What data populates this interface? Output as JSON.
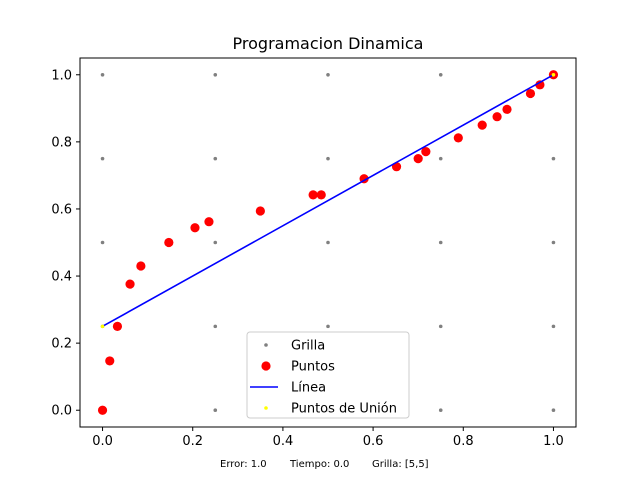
{
  "chart_data": {
    "type": "scatter",
    "title": "Programacion Dinamica",
    "xlabel": "",
    "ylabel": "",
    "xlim": [
      -0.05,
      1.05
    ],
    "ylim": [
      -0.05,
      1.05
    ],
    "xticks": [
      0.0,
      0.2,
      0.4,
      0.6,
      0.8,
      1.0
    ],
    "xtick_labels": [
      "0.0",
      "0.2",
      "0.4",
      "0.6",
      "0.8",
      "1.0"
    ],
    "yticks": [
      0.0,
      0.2,
      0.4,
      0.6,
      0.8,
      1.0
    ],
    "ytick_labels": [
      "0.0",
      "0.2",
      "0.4",
      "0.6",
      "0.8",
      "1.0"
    ],
    "grid": false,
    "legend_position": "lower-center",
    "series": [
      {
        "name": "Grilla",
        "kind": "scatter-small",
        "color": "#808080",
        "points": [
          [
            0.0,
            0.0
          ],
          [
            0.25,
            0.0
          ],
          [
            0.5,
            0.0
          ],
          [
            0.75,
            0.0
          ],
          [
            1.0,
            0.0
          ],
          [
            0.0,
            0.25
          ],
          [
            0.25,
            0.25
          ],
          [
            0.5,
            0.25
          ],
          [
            0.75,
            0.25
          ],
          [
            1.0,
            0.25
          ],
          [
            0.0,
            0.5
          ],
          [
            0.25,
            0.5
          ],
          [
            0.5,
            0.5
          ],
          [
            0.75,
            0.5
          ],
          [
            1.0,
            0.5
          ],
          [
            0.0,
            0.75
          ],
          [
            0.25,
            0.75
          ],
          [
            0.5,
            0.75
          ],
          [
            0.75,
            0.75
          ],
          [
            1.0,
            0.75
          ],
          [
            0.0,
            1.0
          ],
          [
            0.25,
            1.0
          ],
          [
            0.5,
            1.0
          ],
          [
            0.75,
            1.0
          ],
          [
            1.0,
            1.0
          ]
        ]
      },
      {
        "name": "Puntos",
        "kind": "scatter",
        "color": "#ff0000",
        "points": [
          [
            0.0,
            0.0
          ],
          [
            0.016,
            0.147
          ],
          [
            0.033,
            0.25
          ],
          [
            0.061,
            0.376
          ],
          [
            0.085,
            0.43
          ],
          [
            0.147,
            0.5
          ],
          [
            0.205,
            0.544
          ],
          [
            0.236,
            0.562
          ],
          [
            0.35,
            0.594
          ],
          [
            0.467,
            0.642
          ],
          [
            0.485,
            0.642
          ],
          [
            0.58,
            0.69
          ],
          [
            0.652,
            0.726
          ],
          [
            0.7,
            0.75
          ],
          [
            0.717,
            0.771
          ],
          [
            0.789,
            0.812
          ],
          [
            0.842,
            0.85
          ],
          [
            0.875,
            0.875
          ],
          [
            0.897,
            0.897
          ],
          [
            0.949,
            0.944
          ],
          [
            0.97,
            0.97
          ],
          [
            1.0,
            1.0
          ]
        ]
      },
      {
        "name": "Línea",
        "kind": "line",
        "color": "#0000ff",
        "points": [
          [
            0.0,
            0.25
          ],
          [
            1.0,
            1.0
          ]
        ]
      },
      {
        "name": "Puntos de Unión",
        "kind": "scatter-small",
        "color": "#ffff00",
        "points": [
          [
            0.0,
            0.25
          ],
          [
            1.0,
            1.0
          ]
        ]
      }
    ],
    "caption": {
      "error": "Error: 1.0",
      "tiempo": "Tiempo: 0.0",
      "grilla": "Grilla: [5,5]"
    }
  }
}
